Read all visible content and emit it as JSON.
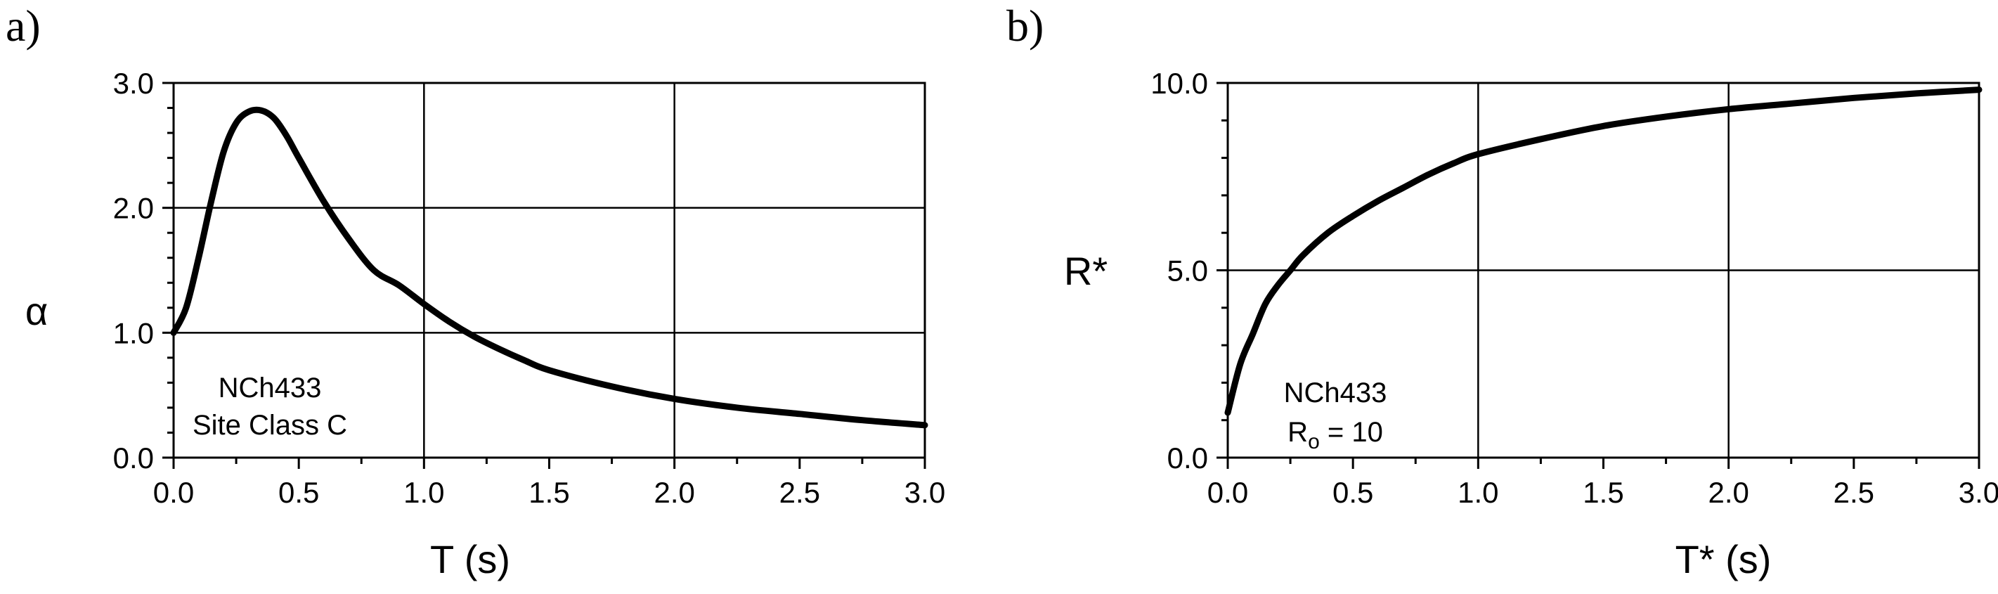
{
  "chart_data": [
    {
      "type": "line",
      "panel_label": "a)",
      "xlabel": "T (s)",
      "ylabel": "α",
      "xlim": [
        0,
        3
      ],
      "ylim": [
        0,
        3
      ],
      "x_ticks": [
        "0.0",
        "0.5",
        "1.0",
        "1.5",
        "2.0",
        "2.5",
        "3.0"
      ],
      "y_ticks": [
        "0.0",
        "1.0",
        "2.0",
        "3.0"
      ],
      "grid": true,
      "annotation": [
        "NCh433",
        "Site Class C"
      ],
      "series": [
        {
          "x": [
            0,
            0.05,
            0.1,
            0.15,
            0.2,
            0.25,
            0.3,
            0.35,
            0.4,
            0.45,
            0.5,
            0.6,
            0.7,
            0.8,
            0.9,
            1.0,
            1.1,
            1.2,
            1.3,
            1.4,
            1.5,
            1.75,
            2.0,
            2.25,
            2.5,
            2.75,
            3.0
          ],
          "y": [
            1.0,
            1.2,
            1.6,
            2.05,
            2.45,
            2.68,
            2.77,
            2.78,
            2.72,
            2.58,
            2.4,
            2.05,
            1.75,
            1.5,
            1.38,
            1.23,
            1.09,
            0.97,
            0.87,
            0.78,
            0.7,
            0.57,
            0.47,
            0.4,
            0.35,
            0.3,
            0.26
          ]
        }
      ]
    },
    {
      "type": "line",
      "panel_label": "b)",
      "xlabel": "T* (s)",
      "ylabel": "R*",
      "xlim": [
        0,
        3
      ],
      "ylim": [
        0,
        10
      ],
      "x_ticks": [
        "0.0",
        "0.5",
        "1.0",
        "1.5",
        "2.0",
        "2.5",
        "3.0"
      ],
      "y_ticks": [
        "0.0",
        "5.0",
        "10.0"
      ],
      "grid": true,
      "annotation": [
        "NCh433",
        "R",
        "o",
        " = 10"
      ],
      "series": [
        {
          "x": [
            0,
            0.05,
            0.1,
            0.15,
            0.2,
            0.25,
            0.3,
            0.4,
            0.5,
            0.6,
            0.7,
            0.8,
            0.9,
            1.0,
            1.25,
            1.5,
            1.75,
            2.0,
            2.25,
            2.5,
            2.75,
            3.0
          ],
          "y": [
            1.2,
            2.5,
            3.3,
            4.1,
            4.6,
            5.0,
            5.4,
            6.0,
            6.45,
            6.85,
            7.2,
            7.55,
            7.85,
            8.1,
            8.5,
            8.85,
            9.1,
            9.3,
            9.45,
            9.6,
            9.72,
            9.82
          ]
        }
      ]
    }
  ]
}
